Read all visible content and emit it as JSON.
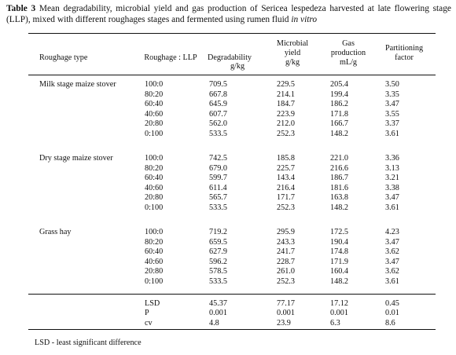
{
  "caption": {
    "label": "Table 3",
    "text": " Mean degradability, microbial yield and gas production of Sericea lespedeza harvested at late flowering stage (LLP), mixed with different roughages stages and fermented using rumen fluid ",
    "italic": "in vitro"
  },
  "headers": {
    "roughage_type": "Roughage type",
    "ratio": "Roughage : LLP",
    "degradability": [
      "Degradability",
      "g/kg"
    ],
    "microbial_yield": [
      "Microbial",
      "yield",
      "g/kg"
    ],
    "gas_production": [
      "Gas",
      "production",
      "mL/g"
    ],
    "partitioning_factor": [
      "Partitioning",
      "factor"
    ]
  },
  "groups": [
    {
      "name": "Milk stage maize stover",
      "rows": [
        [
          "100:0",
          "709.5",
          "229.5",
          "205.4",
          "3.50"
        ],
        [
          "80:20",
          "667.8",
          "214.1",
          "199.4",
          "3.35"
        ],
        [
          "60:40",
          "645.9",
          "184.7",
          "186.2",
          "3.47"
        ],
        [
          "40:60",
          "607.7",
          "223.9",
          "171.8",
          "3.55"
        ],
        [
          "20:80",
          "562.0",
          "212.0",
          "166.7",
          "3.37"
        ],
        [
          "0:100",
          "533.5",
          "252.3",
          "148.2",
          "3.61"
        ]
      ]
    },
    {
      "name": "Dry stage maize stover",
      "rows": [
        [
          "100:0",
          "742.5",
          "185.8",
          "221.0",
          "3.36"
        ],
        [
          "80:20",
          "679.0",
          "225.7",
          "216.6",
          "3.13"
        ],
        [
          "60:40",
          "599.7",
          "143.4",
          "186.7",
          "3.21"
        ],
        [
          "40:60",
          "611.4",
          "216.4",
          "181.6",
          "3.38"
        ],
        [
          "20:80",
          "565.7",
          "171.7",
          "163.8",
          "3.47"
        ],
        [
          "0:100",
          "533.5",
          "252.3",
          "148.2",
          "3.61"
        ]
      ]
    },
    {
      "name": "Grass hay",
      "rows": [
        [
          "100:0",
          "719.2",
          "295.9",
          "172.5",
          "4.23"
        ],
        [
          "80:20",
          "659.5",
          "243.3",
          "190.4",
          "3.47"
        ],
        [
          "60:40",
          "627.9",
          "241.7",
          "174.8",
          "3.62"
        ],
        [
          "40:60",
          "596.2",
          "228.7",
          "171.9",
          "3.47"
        ],
        [
          "20:80",
          "578.5",
          "261.0",
          "160.4",
          "3.62"
        ],
        [
          "0:100",
          "533.5",
          "252.3",
          "148.2",
          "3.61"
        ]
      ]
    }
  ],
  "stats": [
    [
      "LSD",
      "45.37",
      "77.17",
      "17.12",
      "0.45"
    ],
    [
      "P",
      "0.001",
      "0.001",
      "0.001",
      "0.01"
    ],
    [
      "cv",
      "4.8",
      "23.9",
      "6.3",
      "8.6"
    ]
  ],
  "footnote": "LSD - least significant difference"
}
